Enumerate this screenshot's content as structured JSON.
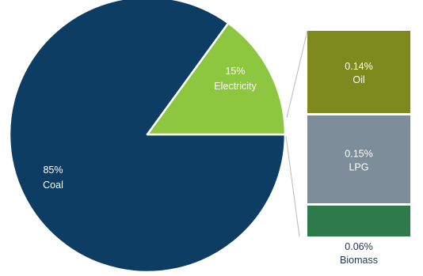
{
  "chart_data": {
    "type": "pie",
    "title": "",
    "slices": [
      {
        "label": "Coal",
        "value_label": "85%",
        "value": 85,
        "color": "#0d3d63",
        "text_color": "#ffffff"
      },
      {
        "label": "Electricity",
        "value_label": "15%",
        "value": 15,
        "color": "#8dc63f",
        "text_color": "#ffffff"
      }
    ],
    "breakdown_of": "Electricity",
    "breakdown": [
      {
        "label": "Oil",
        "value_label": "0.14%",
        "value": 0.14,
        "color": "#7e8a1d",
        "text_color": "#ffffff"
      },
      {
        "label": "LPG",
        "value_label": "0.15%",
        "value": 0.15,
        "color": "#7e8d9a",
        "text_color": "#ffffff"
      },
      {
        "label": "Biomass",
        "value_label": "0.06%",
        "value": 0.06,
        "color": "#2f7a4b",
        "text_color": "#1f3550"
      }
    ]
  }
}
